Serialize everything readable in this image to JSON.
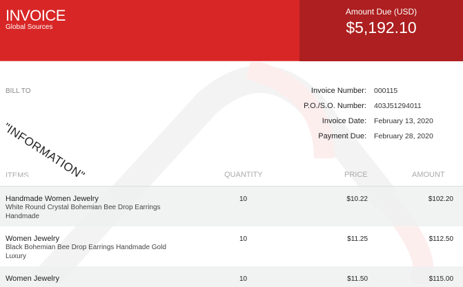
{
  "header": {
    "title": "INVOICE",
    "company": "Global Sources",
    "amount_due_label": "Amount Due (USD)",
    "amount_due": "$5,192.10"
  },
  "bill_to": {
    "label": "BILL TO",
    "stamp": "\"INFORMATION\""
  },
  "meta": [
    {
      "label": "Invoice Number:",
      "value": "000115"
    },
    {
      "label": "P.O./S.O. Number:",
      "value": "403J51294011"
    },
    {
      "label": "Invoice Date:",
      "value": "February 13, 2020"
    },
    {
      "label": "Payment Due:",
      "value": "February 28, 2020"
    }
  ],
  "table": {
    "headers": {
      "items": "ITEMS",
      "quantity": "QUANTITY",
      "price": "PRICE",
      "amount": "AMOUNT"
    },
    "rows": [
      {
        "name": "Handmade Women Jewelry",
        "desc": "White Round Crystal Bohemian Bee Drop Earrings Handmade",
        "qty": "10",
        "price": "$10.22",
        "amount": "$102.20"
      },
      {
        "name": "Women Jewelry",
        "desc": "Black Bohemian Bee Drop Earrings Handmade Gold Luxury",
        "qty": "10",
        "price": "$11.25",
        "amount": "$112.50"
      },
      {
        "name": "Women Jewelry",
        "desc": "",
        "qty": "10",
        "price": "$11.50",
        "amount": "$115.00"
      }
    ]
  },
  "colors": {
    "header": "#d82626",
    "amount_box": "#ad1f20"
  }
}
